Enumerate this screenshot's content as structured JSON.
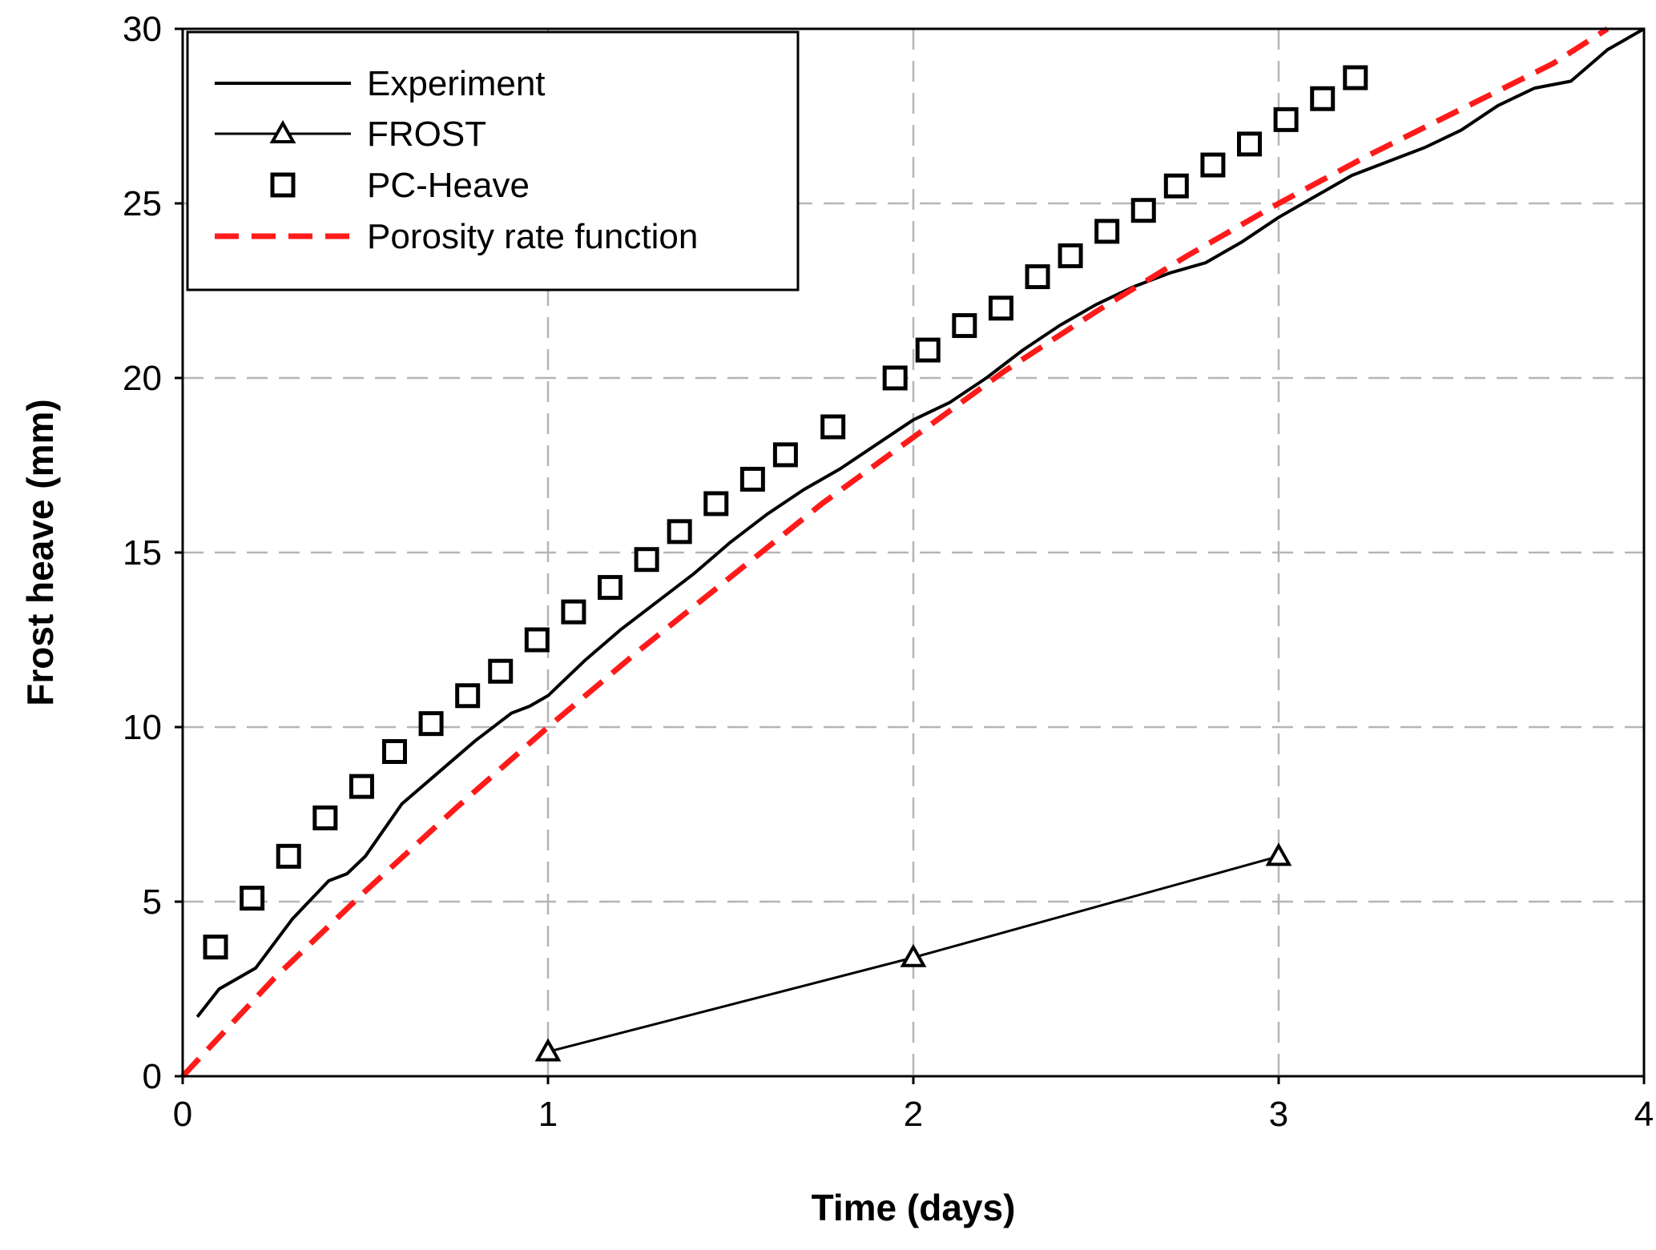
{
  "chart_data": {
    "type": "line",
    "title": "",
    "xlabel": "Time (days)",
    "ylabel": "Frost heave (mm)",
    "xlim": [
      0,
      4
    ],
    "ylim": [
      0,
      30
    ],
    "xticks": [
      0,
      1,
      2,
      3,
      4
    ],
    "yticks": [
      0,
      5,
      10,
      15,
      20,
      25,
      30
    ],
    "xtick_labels": [
      "0",
      "1",
      "2",
      "3",
      "4"
    ],
    "ytick_labels": [
      "0",
      "5",
      "10",
      "15",
      "20",
      "25",
      "30"
    ],
    "grid": "dashed",
    "legend_position": "top-left",
    "series": [
      {
        "name": "Experiment",
        "style": "solid-line",
        "color": "#000000",
        "x": [
          0.04,
          0.1,
          0.2,
          0.3,
          0.4,
          0.45,
          0.5,
          0.6,
          0.7,
          0.8,
          0.9,
          0.95,
          1.0,
          1.1,
          1.2,
          1.3,
          1.4,
          1.5,
          1.6,
          1.7,
          1.8,
          1.9,
          2.0,
          2.1,
          2.2,
          2.3,
          2.4,
          2.5,
          2.6,
          2.7,
          2.8,
          2.9,
          3.0,
          3.1,
          3.2,
          3.3,
          3.4,
          3.5,
          3.6,
          3.7,
          3.8,
          3.9,
          4.0
        ],
        "y": [
          1.7,
          2.5,
          3.1,
          4.5,
          5.6,
          5.8,
          6.3,
          7.8,
          8.7,
          9.6,
          10.4,
          10.6,
          10.9,
          11.9,
          12.8,
          13.6,
          14.4,
          15.3,
          16.1,
          16.8,
          17.4,
          18.1,
          18.8,
          19.3,
          20.0,
          20.8,
          21.5,
          22.1,
          22.6,
          23.0,
          23.3,
          23.9,
          24.6,
          25.2,
          25.8,
          26.2,
          26.6,
          27.1,
          27.8,
          28.3,
          28.5,
          29.4,
          30.0
        ]
      },
      {
        "name": "FROST",
        "style": "line-triangle",
        "color": "#000000",
        "x": [
          1.0,
          2.0,
          3.0
        ],
        "y": [
          0.7,
          3.4,
          6.3
        ]
      },
      {
        "name": "PC-Heave",
        "style": "square-markers",
        "color": "#000000",
        "x": [
          0.09,
          0.19,
          0.29,
          0.39,
          0.49,
          0.58,
          0.68,
          0.78,
          0.87,
          0.97,
          1.07,
          1.17,
          1.27,
          1.36,
          1.46,
          1.56,
          1.65,
          1.78,
          1.95,
          2.04,
          2.14,
          2.24,
          2.34,
          2.43,
          2.53,
          2.63,
          2.72,
          2.82,
          2.92,
          3.02,
          3.12,
          3.21
        ],
        "y": [
          3.7,
          5.1,
          6.3,
          7.4,
          8.3,
          9.3,
          10.1,
          10.9,
          11.6,
          12.5,
          13.3,
          14.0,
          14.8,
          15.6,
          16.4,
          17.1,
          17.8,
          18.6,
          20.0,
          20.8,
          21.5,
          22.0,
          22.9,
          23.5,
          24.2,
          24.8,
          25.5,
          26.1,
          26.7,
          27.4,
          28.0,
          28.6
        ]
      },
      {
        "name": "Porosity rate function",
        "style": "dashed-line",
        "color": "#ff1a1a",
        "x": [
          0.0,
          0.25,
          0.5,
          0.75,
          1.0,
          1.25,
          1.5,
          1.75,
          2.0,
          2.25,
          2.5,
          2.75,
          3.0,
          3.25,
          3.5,
          3.75,
          3.9
        ],
        "y": [
          0.0,
          2.8,
          5.3,
          7.7,
          10.0,
          12.2,
          14.3,
          16.4,
          18.3,
          20.2,
          21.9,
          23.5,
          25.0,
          26.4,
          27.7,
          29.0,
          30.0
        ]
      }
    ]
  }
}
